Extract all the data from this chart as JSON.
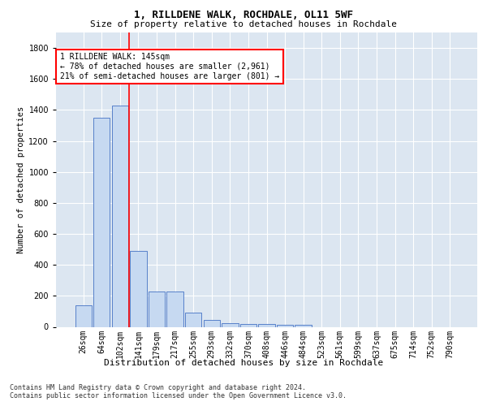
{
  "title1": "1, RILLDENE WALK, ROCHDALE, OL11 5WF",
  "title2": "Size of property relative to detached houses in Rochdale",
  "xlabel": "Distribution of detached houses by size in Rochdale",
  "ylabel": "Number of detached properties",
  "footnote": "Contains HM Land Registry data © Crown copyright and database right 2024.\nContains public sector information licensed under the Open Government Licence v3.0.",
  "bar_labels": [
    "26sqm",
    "64sqm",
    "102sqm",
    "141sqm",
    "179sqm",
    "217sqm",
    "255sqm",
    "293sqm",
    "332sqm",
    "370sqm",
    "408sqm",
    "446sqm",
    "484sqm",
    "523sqm",
    "561sqm",
    "599sqm",
    "637sqm",
    "675sqm",
    "714sqm",
    "752sqm",
    "790sqm"
  ],
  "bar_values": [
    140,
    1350,
    1430,
    490,
    230,
    230,
    90,
    45,
    25,
    18,
    18,
    15,
    15,
    0,
    0,
    0,
    0,
    0,
    0,
    0,
    0
  ],
  "bar_color": "#c6d9f1",
  "bar_edge_color": "#4472c4",
  "annotation_text": "1 RILLDENE WALK: 145sqm\n← 78% of detached houses are smaller (2,961)\n21% of semi-detached houses are larger (801) →",
  "annotation_box_color": "white",
  "annotation_box_edge_color": "red",
  "line_color": "red",
  "line_bar_index": 3,
  "ylim": [
    0,
    1900
  ],
  "yticks": [
    0,
    200,
    400,
    600,
    800,
    1000,
    1200,
    1400,
    1600,
    1800
  ],
  "plot_bg_color": "#dce6f1",
  "grid_color": "white",
  "title1_fontsize": 9,
  "title2_fontsize": 8,
  "ylabel_fontsize": 7.5,
  "xlabel_fontsize": 8,
  "tick_fontsize": 7,
  "annotation_fontsize": 7,
  "footnote_fontsize": 6
}
